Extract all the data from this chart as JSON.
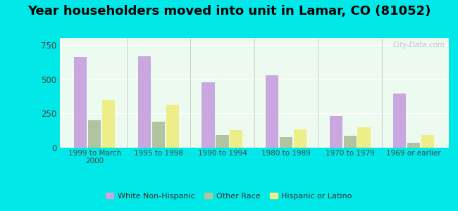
{
  "title": "Year householders moved into unit in Lamar, CO (81052)",
  "categories": [
    "1999 to March\n2000",
    "1995 to 1998",
    "1990 to 1994",
    "1980 to 1989",
    "1970 to 1979",
    "1969 or earlier"
  ],
  "white": [
    660,
    665,
    475,
    530,
    230,
    395
  ],
  "other": [
    200,
    190,
    90,
    75,
    85,
    35
  ],
  "hispanic": [
    350,
    315,
    130,
    135,
    150,
    90
  ],
  "white_color": "#c9a8e0",
  "other_color": "#b0c4a0",
  "hispanic_color": "#eeee88",
  "ylim": [
    0,
    800
  ],
  "yticks": [
    0,
    250,
    500,
    750
  ],
  "background_color": "#edfaf0",
  "outer_background": "#00e8e8",
  "title_fontsize": 13,
  "watermark": "City-Data.com"
}
